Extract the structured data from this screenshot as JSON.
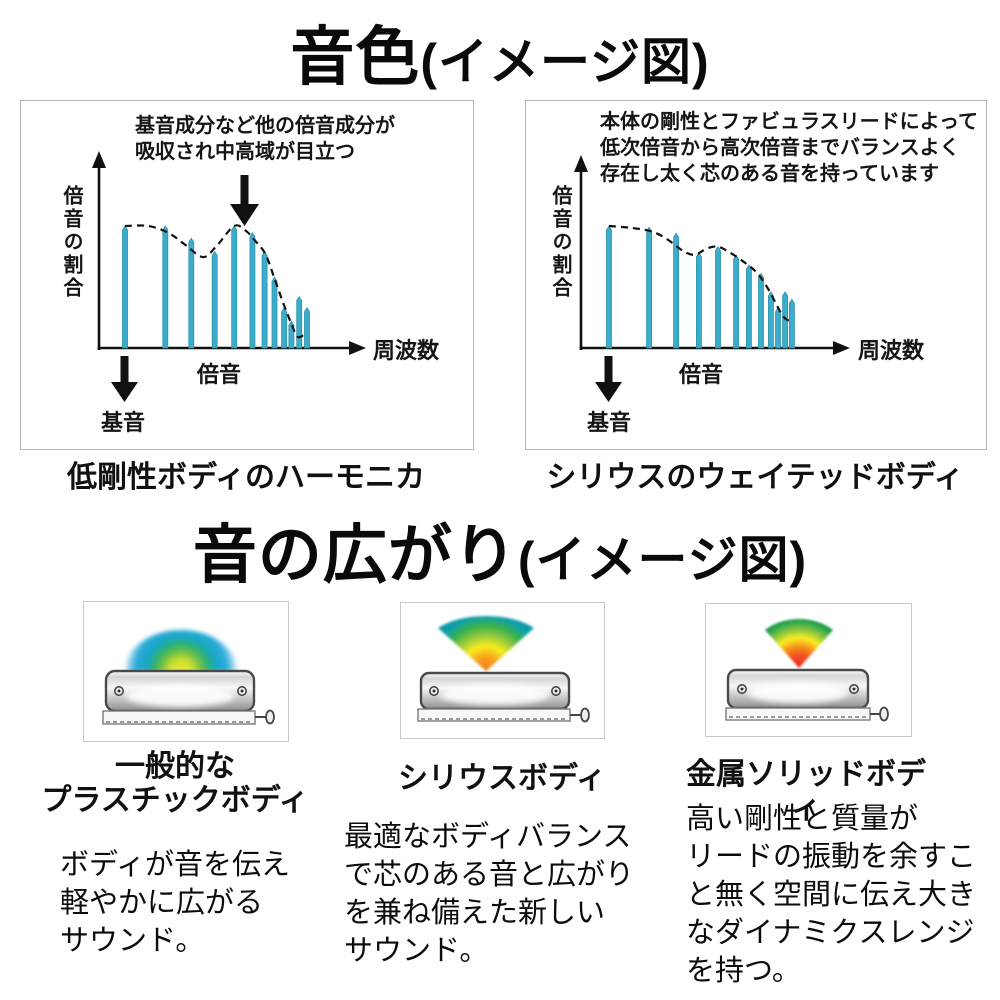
{
  "titles": {
    "timbre_main": "音色",
    "timbre_paren": "(イメージ図)",
    "spread_main": "音の広がり",
    "spread_paren": "(イメージ図)"
  },
  "chart_data": [
    {
      "type": "bar",
      "caption": "低剛性ボディのハーモニカ",
      "annotation": "基音成分など他の倍音成分が\n吸収され中高域が目立つ",
      "xlabel": "周波数",
      "ylabel": "倍音の割合",
      "overtone_label": "倍音",
      "fundamental_label": "基音",
      "bar_color": "#3badcb",
      "bar_edge_color": "#2d93ad",
      "scale_note": "conceptual diagram - relative units 0-1, no numeric axis ticks",
      "x_rel": [
        0.1,
        0.255,
        0.355,
        0.445,
        0.52,
        0.59,
        0.637,
        0.675,
        0.712,
        0.74,
        0.77,
        0.8
      ],
      "heights_rel": [
        1.0,
        1.0,
        0.9,
        0.79,
        1.0,
        0.945,
        0.79,
        0.58,
        0.33,
        0.22,
        0.42,
        0.33
      ],
      "envelope": [
        [
          0.1,
          1.0
        ],
        [
          0.19,
          1.0
        ],
        [
          0.27,
          0.94
        ],
        [
          0.335,
          0.84
        ],
        [
          0.4,
          0.745
        ],
        [
          0.45,
          0.83
        ],
        [
          0.52,
          1.0
        ],
        [
          0.565,
          0.96
        ],
        [
          0.6,
          0.88
        ],
        [
          0.64,
          0.77
        ],
        [
          0.675,
          0.57
        ],
        [
          0.71,
          0.36
        ],
        [
          0.74,
          0.2
        ],
        [
          0.765,
          0.09
        ],
        [
          0.8,
          0.13
        ]
      ],
      "has_peak_arrow": true,
      "legend": "none",
      "grid": false
    },
    {
      "type": "bar",
      "caption": "シリウスのウェイテッドボディ",
      "annotation": "本体の剛性とファビュラスリードによって\n低次倍音から高次倍音までバランスよく\n存在し太く芯のある音を持っています",
      "xlabel": "周波数",
      "ylabel": "倍音の割合",
      "overtone_label": "倍音",
      "fundamental_label": "基音",
      "bar_color": "#3badcb",
      "bar_edge_color": "#2d93ad",
      "scale_note": "conceptual diagram - relative units 0-1, no numeric axis ticks",
      "x_rel": [
        0.107,
        0.26,
        0.363,
        0.45,
        0.523,
        0.592,
        0.641,
        0.687,
        0.725,
        0.752,
        0.779,
        0.805
      ],
      "heights_rel": [
        1.0,
        0.99,
        0.94,
        0.78,
        0.83,
        0.76,
        0.68,
        0.61,
        0.46,
        0.33,
        0.46,
        0.4
      ],
      "envelope": [
        [
          0.107,
          1.0
        ],
        [
          0.19,
          0.985
        ],
        [
          0.27,
          0.955
        ],
        [
          0.33,
          0.89
        ],
        [
          0.39,
          0.795
        ],
        [
          0.435,
          0.765
        ],
        [
          0.48,
          0.815
        ],
        [
          0.523,
          0.83
        ],
        [
          0.57,
          0.78
        ],
        [
          0.625,
          0.7
        ],
        [
          0.67,
          0.62
        ],
        [
          0.71,
          0.5
        ],
        [
          0.745,
          0.36
        ],
        [
          0.775,
          0.25
        ],
        [
          0.81,
          0.21
        ]
      ],
      "has_peak_arrow": false,
      "legend": "none",
      "grid": false
    }
  ],
  "spread": {
    "items": [
      {
        "heading": "一般的な\nプラスチックボディ",
        "body": "ボディが音を伝え\n軽やかに広がる\nサウンド。",
        "shape": "semicircle-dome",
        "palette": [
          "#e9e73a",
          "#7cc142",
          "#19a7c6",
          "#2ba9d8"
        ]
      },
      {
        "heading": "シリウスボディ",
        "body": "最適なボディバランス\nで芯のある音と広がり\nを兼ね備えた新しい\nサウンド。",
        "shape": "wide-fan",
        "palette": [
          "#f4731d",
          "#f7ec1e",
          "#93c83d",
          "#0f98a2"
        ]
      },
      {
        "heading": "金属ソリッドボディ",
        "body": "高い剛性と質量が\nリードの振動を余すこ\nと無く空間に伝え大き\nなダイナミクスレンジ\nを持つ。",
        "shape": "narrow-fan",
        "palette": [
          "#ee1c25",
          "#f7941d",
          "#fbed21",
          "#0d9155"
        ]
      }
    ]
  }
}
